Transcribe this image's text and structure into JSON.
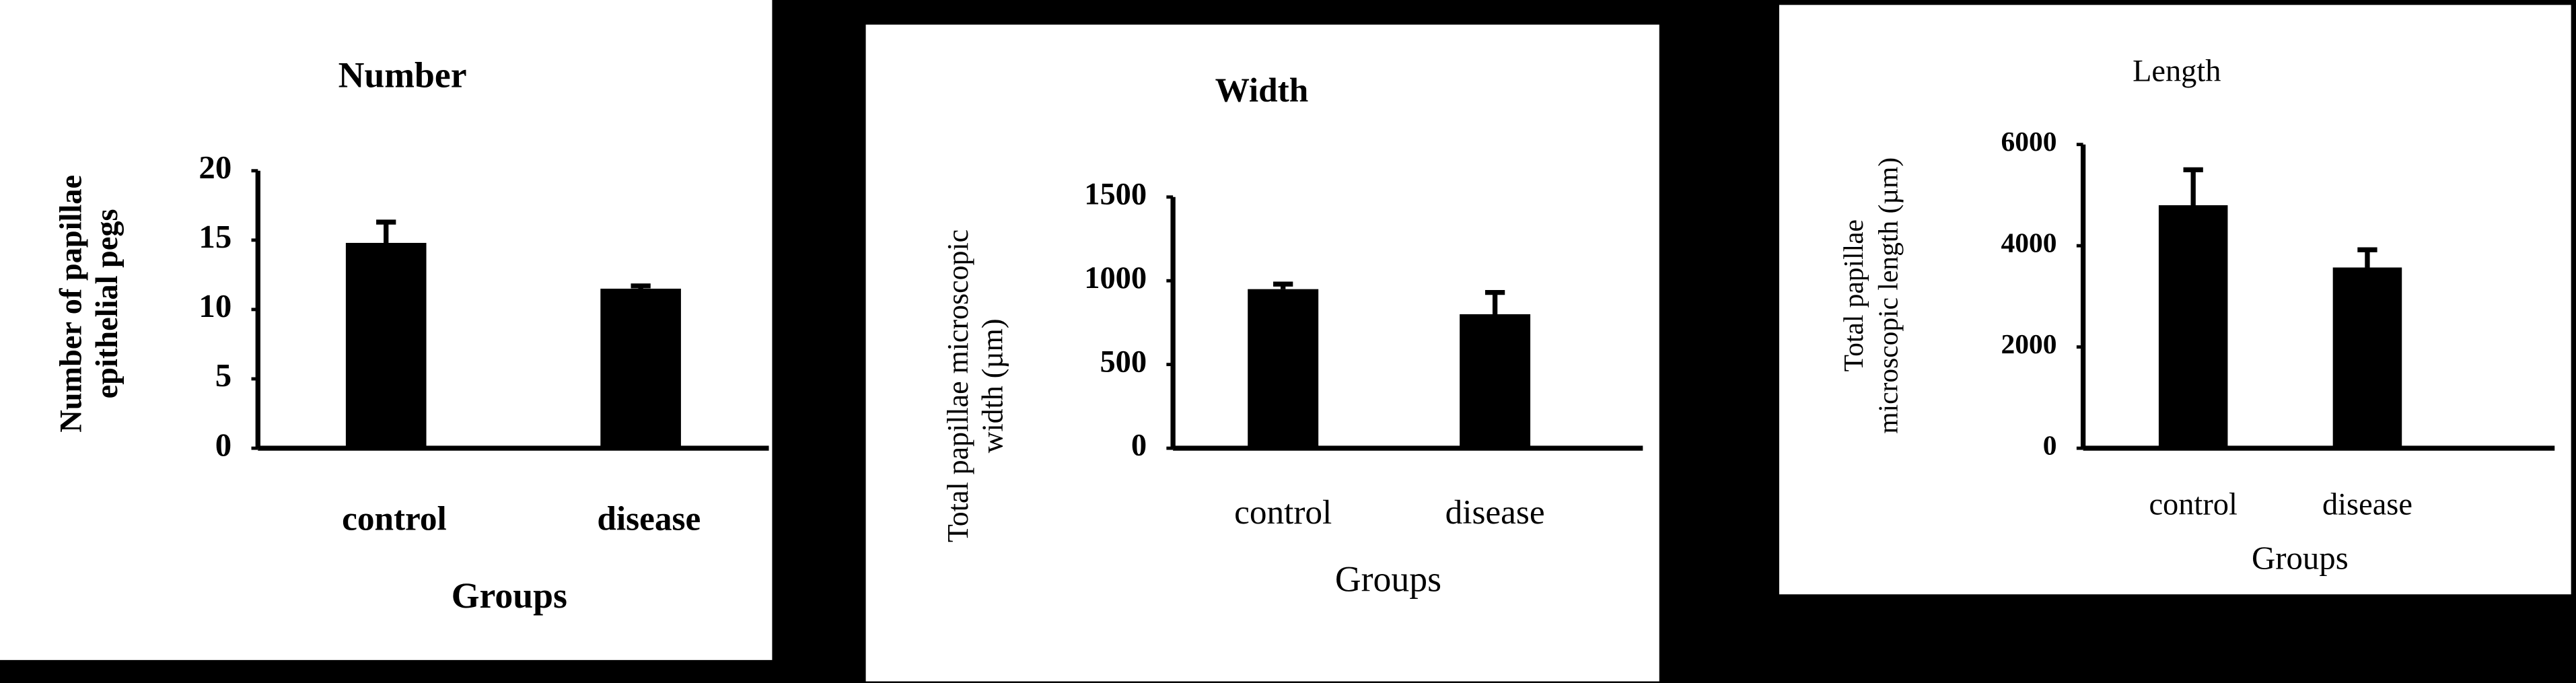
{
  "chart_data": [
    {
      "type": "bar",
      "title": "Number",
      "xlabel": "Groups",
      "ylabel": [
        "Number of papillae",
        "epithelial pegs"
      ],
      "categories": [
        "control",
        "disease"
      ],
      "values": [
        14.8,
        11.5
      ],
      "errors": [
        1.5,
        0.2
      ],
      "color": "#000000",
      "ylim": [
        0,
        20
      ],
      "yticks": [
        0,
        5,
        10,
        15,
        20
      ]
    },
    {
      "type": "bar",
      "title": "Width",
      "xlabel": "Groups",
      "ylabel": [
        "Total papillae microscopic",
        "width (µm)"
      ],
      "categories": [
        "control",
        "disease"
      ],
      "values": [
        950,
        800
      ],
      "errors": [
        30,
        130
      ],
      "color": "#000000",
      "ylim": [
        0,
        1500
      ],
      "yticks": [
        0,
        500,
        1000,
        1500
      ]
    },
    {
      "type": "bar",
      "title": "Length",
      "xlabel": "Groups",
      "ylabel": [
        "Total papillae",
        "microscopic length (µm)"
      ],
      "categories": [
        "control",
        "disease"
      ],
      "values": [
        4800,
        3570
      ],
      "errors": [
        700,
        350
      ],
      "color": "#000000",
      "ylim": [
        0,
        6000
      ],
      "yticks": [
        0,
        2000,
        4000,
        6000
      ]
    }
  ]
}
